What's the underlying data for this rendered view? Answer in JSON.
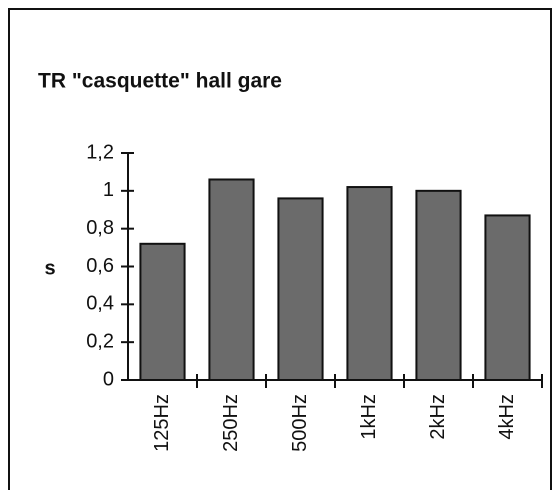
{
  "chart_data": {
    "type": "bar",
    "title": "TR \"casquette\" hall gare",
    "y_label": "s",
    "categories": [
      "125Hz",
      "250Hz",
      "500Hz",
      "1kHz",
      "2kHz",
      "4kHz"
    ],
    "values": [
      0.72,
      1.06,
      0.96,
      1.02,
      1.0,
      0.87
    ],
    "color": "#6b6b6b",
    "ylim": [
      0,
      1.2
    ],
    "yticks": [
      0,
      {
        "value": 0.2,
        "label": "0,2"
      },
      {
        "value": 0.4,
        "label": "0,4"
      },
      {
        "value": 0.6,
        "label": "0,6"
      },
      {
        "value": 0.8,
        "label": "0,8"
      },
      1,
      {
        "value": 1.2,
        "label": "1,2"
      }
    ],
    "grid": false
  }
}
